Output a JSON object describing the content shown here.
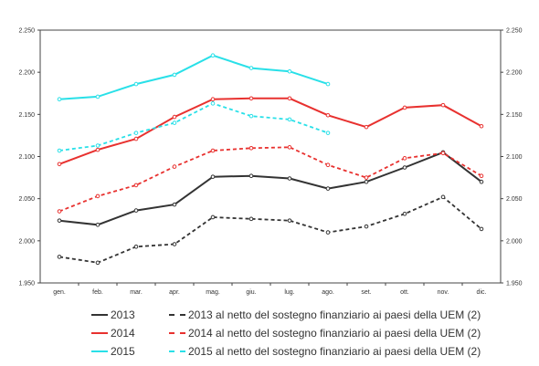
{
  "chart_data": {
    "type": "line",
    "title": "",
    "xlabel": "",
    "ylabel": "",
    "ylim": [
      1950,
      2250
    ],
    "y_ticks": [
      "1.950",
      "2.000",
      "2.050",
      "2.100",
      "2.150",
      "2.200",
      "2.250"
    ],
    "categories": [
      "gen.",
      "feb.",
      "mar.",
      "apr.",
      "mag.",
      "giu.",
      "lug.",
      "ago.",
      "set.",
      "ott.",
      "nov.",
      "dic."
    ],
    "series": [
      {
        "name": "2013",
        "color": "#333333",
        "dashed": false,
        "values": [
          2024,
          2019,
          2036,
          2043,
          2076,
          2077,
          2074,
          2062,
          2070,
          2087,
          2105,
          2070
        ]
      },
      {
        "name": "2014",
        "color": "#e8312f",
        "dashed": false,
        "values": [
          2091,
          2108,
          2121,
          2147,
          2168,
          2169,
          2169,
          2149,
          2135,
          2158,
          2161,
          2136
        ]
      },
      {
        "name": "2015",
        "color": "#29e0e8",
        "dashed": false,
        "values": [
          2168,
          2171,
          2186,
          2197,
          2220,
          2205,
          2201,
          2186,
          null,
          null,
          null,
          null
        ]
      },
      {
        "name": "2013 al netto del sostegno finanziario ai paesi della UEM (2)",
        "color": "#333333",
        "dashed": true,
        "values": [
          1981,
          1974,
          1993,
          1996,
          2028,
          2026,
          2024,
          2010,
          2017,
          2032,
          2052,
          2014
        ]
      },
      {
        "name": "2014 al netto del sostegno finanziario ai paesi della UEM (2)",
        "color": "#e8312f",
        "dashed": true,
        "values": [
          2035,
          2053,
          2066,
          2088,
          2107,
          2110,
          2111,
          2090,
          2075,
          2098,
          2104,
          2077
        ]
      },
      {
        "name": "2015 al netto del sostegno finanziario ai paesi della UEM (2)",
        "color": "#29e0e8",
        "dashed": true,
        "values": [
          2107,
          2113,
          2128,
          2140,
          2163,
          2148,
          2144,
          2128,
          null,
          null,
          null,
          null
        ]
      }
    ]
  }
}
